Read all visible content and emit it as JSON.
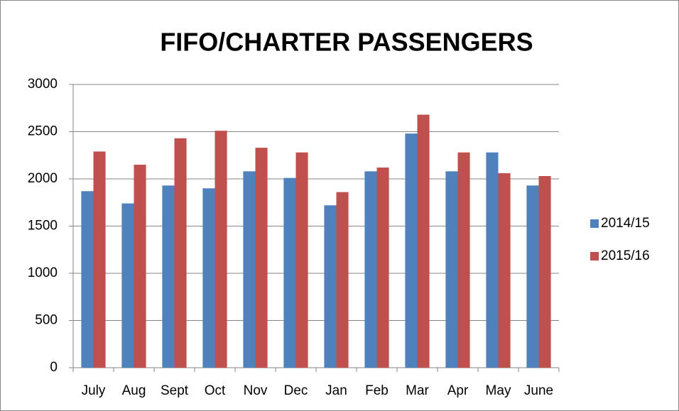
{
  "chart_data": {
    "type": "bar",
    "title": "FIFO/CHARTER PASSENGERS",
    "categories": [
      "July",
      "Aug",
      "Sept",
      "Oct",
      "Nov",
      "Dec",
      "Jan",
      "Feb",
      "Mar",
      "Apr",
      "May",
      "June"
    ],
    "series": [
      {
        "name": "2014/15",
        "color": "#4f81bd",
        "values": [
          1870,
          1740,
          1930,
          1900,
          2080,
          2010,
          1720,
          2080,
          2480,
          2080,
          2280,
          1930
        ]
      },
      {
        "name": "2015/16",
        "color": "#c0504d",
        "values": [
          2290,
          2150,
          2430,
          2510,
          2330,
          2280,
          1860,
          2120,
          2680,
          2280,
          2060,
          2030
        ]
      }
    ],
    "ylim": [
      0,
      3000
    ],
    "yticks": [
      0,
      500,
      1000,
      1500,
      2000,
      2500,
      3000
    ],
    "grid": true,
    "legend": "right"
  }
}
